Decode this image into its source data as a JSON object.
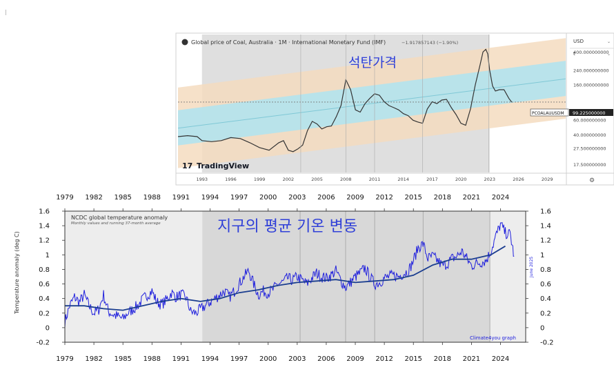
{
  "coal": {
    "title": "Global price of Coal, Australia · 1M · International Monetary Fund (IMF)",
    "change": "−1.917857143 (−1.90%)",
    "overlay_title": "석탄가격",
    "currency": "USD",
    "scale_mode": "t",
    "price_tag_symbol": "PCOALAUUSDM",
    "price_tag_value": "99.225000000",
    "watermark": "TradingView",
    "watermark_glyph": "17",
    "settings_glyph": "⚙",
    "colors": {
      "channel_outer": "#f5dcc0",
      "channel_inner": "#b2e3ee",
      "line": "#333333",
      "shade": "#d3d3d3",
      "midline": "#7fc8d6"
    }
  },
  "temp": {
    "title": "NCDC global temperature anomaly",
    "subtitle": "Monthly values and running 37-month average",
    "overlay_title": "지구의 평균 기온 변동",
    "ylabel": "Temperature anomaly (deg C)",
    "side_note": "June 2025",
    "credit": "Climate4you graph",
    "colors": {
      "monthly": "#1f1fdd",
      "average": "#1a3d8f",
      "shade": "#dcdcdc",
      "background": "#eeeeee"
    }
  },
  "chart_data": [
    {
      "type": "line",
      "title": "Global price of Coal, Australia · 1M · International Monetary Fund (IMF)",
      "log_scale": true,
      "x_ticks": [
        "1993",
        "1996",
        "1999",
        "2002",
        "2005",
        "2008",
        "2011",
        "2014",
        "2017",
        "2020",
        "2023",
        "2026",
        "2029"
      ],
      "y_ticks": [
        "400.000000000",
        "240.000000000",
        "160.000000000",
        "99.225000000",
        "60.000000000",
        "40.000000000",
        "27.500000000",
        "17.500000000"
      ],
      "xlim": [
        1990.5,
        2031.0
      ],
      "ylim": [
        14,
        650
      ],
      "series": [
        {
          "x": [
            1990.5,
            1991.5,
            1992.5,
            1993.0,
            1994.0,
            1995.0,
            1996.0,
            1997.0,
            1998.0,
            1999.0,
            2000.0,
            2001.0,
            2001.5,
            2002.0,
            2002.5,
            2003.0,
            2003.5,
            2004.0,
            2004.5,
            2005.0,
            2005.5,
            2006.0,
            2006.5,
            2007.0,
            2007.5,
            2008.0,
            2008.5,
            2009.0,
            2009.5,
            2010.0,
            2010.5,
            2011.0,
            2011.5,
            2012.0,
            2012.5,
            2013.0,
            2013.5,
            2014.0,
            2014.5,
            2015.0,
            2015.5,
            2016.0,
            2016.5,
            2017.0,
            2017.5,
            2018.0,
            2018.5,
            2019.0,
            2019.5,
            2020.0,
            2020.5,
            2021.0,
            2021.5,
            2022.0,
            2022.3,
            2022.6,
            2022.8,
            2023.0,
            2023.3,
            2023.6,
            2024.0,
            2024.5,
            2025.0,
            2025.3
          ],
          "values": [
            38,
            39,
            38,
            34,
            33,
            34,
            37,
            36,
            32,
            28,
            26,
            32,
            34,
            26,
            25,
            27,
            30,
            45,
            58,
            54,
            47,
            50,
            51,
            66,
            90,
            185,
            140,
            80,
            75,
            95,
            110,
            125,
            120,
            100,
            90,
            85,
            80,
            72,
            68,
            60,
            57,
            55,
            82,
            100,
            95,
            105,
            107,
            85,
            70,
            55,
            52,
            82,
            160,
            280,
            400,
            430,
            380,
            240,
            155,
            135,
            140,
            140,
            110,
            99
          ]
        }
      ],
      "channel_note": "regression channel with inner and outer bands"
    },
    {
      "type": "line",
      "title": "NCDC global temperature anomaly",
      "subtitle": "Monthly values and running 37-month average",
      "ylabel": "Temperature anomaly (deg C)",
      "x_ticks": [
        "1979",
        "1982",
        "1985",
        "1988",
        "1991",
        "1994",
        "1997",
        "2000",
        "2003",
        "2006",
        "2009",
        "2012",
        "2015",
        "2018",
        "2021",
        "2024"
      ],
      "y_ticks": [
        1.6,
        1.4,
        1.2,
        1,
        0.8,
        0.6,
        0.4,
        0.2,
        0,
        -0.2
      ],
      "y_tick_labels": [
        "1.6",
        "1.4",
        "1.2",
        "1",
        "0.8",
        "0.6",
        "0.4",
        "0.2",
        "0",
        "-0.2"
      ],
      "xlim": [
        1979,
        2026.6
      ],
      "ylim": [
        -0.2,
        1.6
      ],
      "series": [
        {
          "x": [
            1979.0,
            1979.5,
            1980.0,
            1980.5,
            1981.0,
            1981.5,
            1982.0,
            1982.5,
            1983.0,
            1983.5,
            1984.0,
            1984.5,
            1985.0,
            1985.5,
            1986.0,
            1986.5,
            1987.0,
            1987.5,
            1988.0,
            1988.5,
            1989.0,
            1989.5,
            1990.0,
            1990.5,
            1991.0,
            1991.5,
            1992.0,
            1992.5,
            1993.0,
            1993.5,
            1994.0,
            1994.5,
            1995.0,
            1995.5,
            1996.0,
            1996.5,
            1997.0,
            1997.5,
            1998.0,
            1998.5,
            1999.0,
            1999.5,
            2000.0,
            2000.5,
            2001.0,
            2001.5,
            2002.0,
            2002.5,
            2003.0,
            2003.5,
            2004.0,
            2004.5,
            2005.0,
            2005.5,
            2006.0,
            2006.5,
            2007.0,
            2007.5,
            2008.0,
            2008.5,
            2009.0,
            2009.5,
            2010.0,
            2010.5,
            2011.0,
            2011.5,
            2012.0,
            2012.5,
            2013.0,
            2013.5,
            2014.0,
            2014.5,
            2015.0,
            2015.5,
            2016.0,
            2016.5,
            2017.0,
            2017.5,
            2018.0,
            2018.5,
            2019.0,
            2019.5,
            2020.0,
            2020.5,
            2021.0,
            2021.5,
            2022.0,
            2022.5,
            2023.0,
            2023.5,
            2024.0,
            2024.5,
            2025.0,
            2025.4
          ],
          "values": [
            0.08,
            0.3,
            0.42,
            0.35,
            0.45,
            0.3,
            0.2,
            0.25,
            0.45,
            0.22,
            0.18,
            0.15,
            0.12,
            0.2,
            0.25,
            0.3,
            0.38,
            0.45,
            0.5,
            0.35,
            0.32,
            0.38,
            0.48,
            0.42,
            0.45,
            0.42,
            0.22,
            0.2,
            0.25,
            0.3,
            0.35,
            0.4,
            0.45,
            0.5,
            0.42,
            0.5,
            0.6,
            0.7,
            0.78,
            0.6,
            0.45,
            0.5,
            0.48,
            0.52,
            0.6,
            0.62,
            0.68,
            0.65,
            0.7,
            0.65,
            0.6,
            0.68,
            0.75,
            0.7,
            0.68,
            0.72,
            0.78,
            0.65,
            0.55,
            0.62,
            0.7,
            0.75,
            0.82,
            0.7,
            0.6,
            0.62,
            0.68,
            0.7,
            0.72,
            0.7,
            0.75,
            0.78,
            0.92,
            1.1,
            1.15,
            0.95,
            0.98,
            0.92,
            0.85,
            0.88,
            0.95,
            0.98,
            1.05,
            0.95,
            0.85,
            0.88,
            0.9,
            0.92,
            1.05,
            1.25,
            1.42,
            1.3,
            1.28,
            0.98
          ]
        },
        {
          "x": [
            1979.0,
            1981.0,
            1983.0,
            1985.0,
            1987.0,
            1989.0,
            1991.0,
            1993.0,
            1995.0,
            1997.0,
            1999.0,
            2001.0,
            2003.0,
            2005.0,
            2007.0,
            2009.0,
            2011.0,
            2013.0,
            2015.0,
            2017.0,
            2019.0,
            2021.0,
            2023.0,
            2024.5
          ],
          "values": [
            0.3,
            0.3,
            0.26,
            0.24,
            0.3,
            0.36,
            0.4,
            0.36,
            0.4,
            0.48,
            0.52,
            0.58,
            0.62,
            0.64,
            0.66,
            0.62,
            0.64,
            0.66,
            0.72,
            0.86,
            0.94,
            0.94,
            1.0,
            1.12
          ]
        }
      ],
      "shaded_range": [
        1993.2,
        2022.9
      ],
      "vertical_markers": [
        2003.3,
        2008.0,
        2011.0,
        2016.0,
        2022.9
      ]
    }
  ]
}
